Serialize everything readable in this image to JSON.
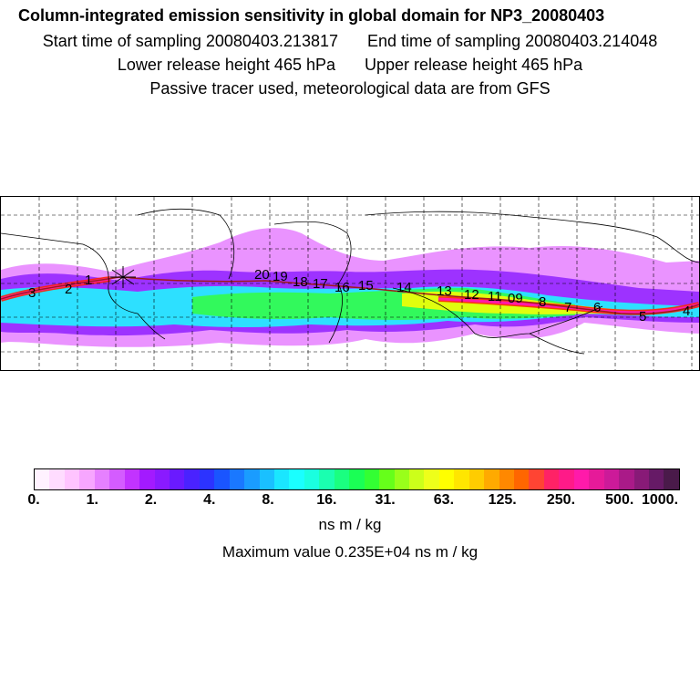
{
  "title": "Column-integrated emission sensitivity in global domain for NP3_20080403",
  "sampling": {
    "start": "Start time of sampling 20080403.213817",
    "end": "End time of sampling 20080403.214048"
  },
  "release": {
    "lower": "Lower release height  465 hPa",
    "upper": "Upper release height  465 hPa"
  },
  "note": "Passive tracer used, meteorological data are from GFS",
  "trajectory_labels": [
    "1",
    "2",
    "3",
    "4",
    "5",
    "6",
    "7",
    "8",
    "09",
    "11",
    "12",
    "13",
    "14",
    "15",
    "16",
    "17",
    "18",
    "19",
    "20"
  ],
  "colorbar": {
    "colors": [
      "#fff2ff",
      "#ffdcff",
      "#ffc4ff",
      "#f7a6ff",
      "#e680ff",
      "#d45cff",
      "#c233ff",
      "#a31aff",
      "#8a1aff",
      "#6a1aff",
      "#4a22ff",
      "#2c33ff",
      "#1a55ff",
      "#1a78ff",
      "#1a9cff",
      "#1ac0ff",
      "#1ae6ff",
      "#1affff",
      "#1affe0",
      "#1affb0",
      "#1aff80",
      "#1aff55",
      "#33ff33",
      "#66ff1a",
      "#99ff1a",
      "#ccff1a",
      "#eeff1a",
      "#ffff00",
      "#ffe600",
      "#ffcc00",
      "#ffaa00",
      "#ff8800",
      "#ff6600",
      "#ff4433",
      "#ff2266",
      "#ff1a88",
      "#ff1aaa",
      "#e61a99",
      "#cc1a99",
      "#aa1a88",
      "#881a77",
      "#661a66",
      "#4a1a4a"
    ],
    "tick_labels": [
      "0.",
      "1.",
      "2.",
      "4.",
      "8.",
      "16.",
      "31.",
      "63.",
      "125.",
      "250.",
      "500.",
      "1000."
    ],
    "units": "ns m / kg",
    "max_value": "Maximum value  0.235E+04 ns m / kg"
  },
  "colors": {
    "plume_outer": "#e680ff",
    "plume_mid": "#8a1aff",
    "plume_cyan": "#1affff",
    "plume_green": "#33ff33",
    "plume_yellow": "#ffff00",
    "plume_red": "#ff2200",
    "plume_core": "#ff1aaa",
    "trajectory": "#a01a1a"
  }
}
